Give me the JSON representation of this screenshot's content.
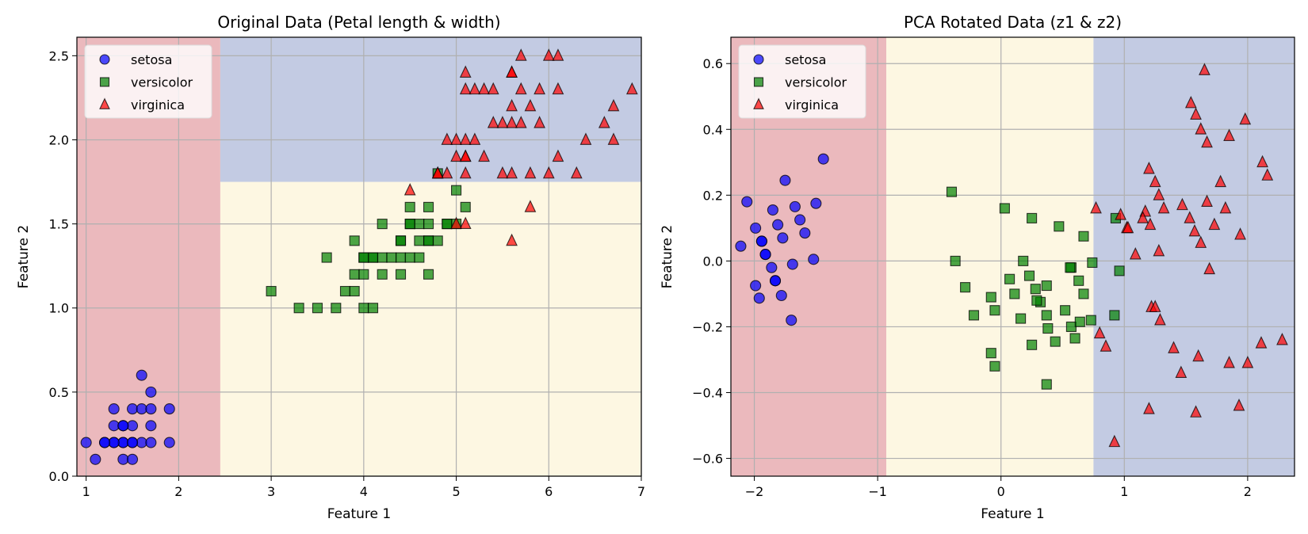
{
  "chart_data": [
    {
      "type": "scatter",
      "title": "Original Data (Petal length & width)",
      "xlabel": "Feature 1",
      "ylabel": "Feature 2",
      "xlim": [
        0.9,
        7.0
      ],
      "ylim": [
        0.0,
        2.61
      ],
      "xticks": [
        1,
        2,
        3,
        4,
        5,
        6,
        7
      ],
      "xtick_labels": [
        "1",
        "2",
        "3",
        "4",
        "5",
        "6",
        "7"
      ],
      "yticks": [
        0.0,
        0.5,
        1.0,
        1.5,
        2.0,
        2.5
      ],
      "ytick_labels": [
        "0.0",
        "0.5",
        "1.0",
        "1.5",
        "2.0",
        "2.5"
      ],
      "grid": true,
      "legend": "top-left",
      "regions": [
        {
          "class": "setosa",
          "color": "#ebb9bd",
          "bounds": {
            "x": [
              0.9,
              2.45
            ],
            "y": [
              0.0,
              2.61
            ]
          }
        },
        {
          "class": "versicolor",
          "color": "#fdf7e2",
          "bounds": {
            "x": [
              2.45,
              7.0
            ],
            "y": [
              0.0,
              1.75
            ]
          }
        },
        {
          "class": "virginica",
          "color": "#c3cbe3",
          "bounds": {
            "x": [
              2.45,
              7.0
            ],
            "y": [
              1.75,
              2.61
            ]
          }
        }
      ],
      "series": [
        {
          "name": "setosa",
          "marker": "circle",
          "color": "#0000ff",
          "points": [
            [
              1.0,
              0.2
            ],
            [
              1.1,
              0.1
            ],
            [
              1.2,
              0.2
            ],
            [
              1.3,
              0.2
            ],
            [
              1.4,
              0.2
            ],
            [
              1.5,
              0.2
            ],
            [
              1.6,
              0.2
            ],
            [
              1.7,
              0.2
            ],
            [
              1.9,
              0.2
            ],
            [
              1.4,
              0.1
            ],
            [
              1.5,
              0.1
            ],
            [
              1.3,
              0.3
            ],
            [
              1.4,
              0.3
            ],
            [
              1.5,
              0.3
            ],
            [
              1.7,
              0.3
            ],
            [
              1.3,
              0.4
            ],
            [
              1.5,
              0.4
            ],
            [
              1.6,
              0.4
            ],
            [
              1.7,
              0.4
            ],
            [
              1.9,
              0.4
            ],
            [
              1.7,
              0.5
            ],
            [
              1.6,
              0.6
            ],
            [
              1.4,
              0.2
            ],
            [
              1.5,
              0.2
            ],
            [
              1.3,
              0.2
            ],
            [
              1.2,
              0.2
            ],
            [
              1.4,
              0.3
            ]
          ]
        },
        {
          "name": "versicolor",
          "marker": "square",
          "color": "#008000",
          "points": [
            [
              3.0,
              1.1
            ],
            [
              3.3,
              1.0
            ],
            [
              3.5,
              1.0
            ],
            [
              3.7,
              1.0
            ],
            [
              4.0,
              1.0
            ],
            [
              4.1,
              1.0
            ],
            [
              3.8,
              1.1
            ],
            [
              3.9,
              1.1
            ],
            [
              3.9,
              1.2
            ],
            [
              4.0,
              1.2
            ],
            [
              4.2,
              1.2
            ],
            [
              4.4,
              1.2
            ],
            [
              4.7,
              1.2
            ],
            [
              3.6,
              1.3
            ],
            [
              4.0,
              1.3
            ],
            [
              4.1,
              1.3
            ],
            [
              4.2,
              1.3
            ],
            [
              4.3,
              1.3
            ],
            [
              4.4,
              1.3
            ],
            [
              4.5,
              1.3
            ],
            [
              4.6,
              1.3
            ],
            [
              3.9,
              1.4
            ],
            [
              4.4,
              1.4
            ],
            [
              4.6,
              1.4
            ],
            [
              4.7,
              1.4
            ],
            [
              4.8,
              1.4
            ],
            [
              4.2,
              1.5
            ],
            [
              4.5,
              1.5
            ],
            [
              4.6,
              1.5
            ],
            [
              4.7,
              1.5
            ],
            [
              4.9,
              1.5
            ],
            [
              5.0,
              1.5
            ],
            [
              4.5,
              1.6
            ],
            [
              4.7,
              1.6
            ],
            [
              5.1,
              1.6
            ],
            [
              5.0,
              1.7
            ],
            [
              4.8,
              1.8
            ],
            [
              4.1,
              1.3
            ],
            [
              4.0,
              1.3
            ],
            [
              4.5,
              1.5
            ],
            [
              4.4,
              1.4
            ],
            [
              4.7,
              1.4
            ],
            [
              4.9,
              1.5
            ]
          ]
        },
        {
          "name": "virginica",
          "marker": "triangle",
          "color": "#ff0000",
          "points": [
            [
              4.5,
              1.7
            ],
            [
              5.0,
              1.5
            ],
            [
              5.1,
              1.5
            ],
            [
              5.6,
              1.4
            ],
            [
              5.8,
              1.6
            ],
            [
              4.8,
              1.8
            ],
            [
              4.9,
              1.8
            ],
            [
              5.1,
              1.8
            ],
            [
              5.5,
              1.8
            ],
            [
              5.6,
              1.8
            ],
            [
              5.8,
              1.8
            ],
            [
              6.0,
              1.8
            ],
            [
              6.3,
              1.8
            ],
            [
              4.8,
              1.8
            ],
            [
              5.0,
              1.9
            ],
            [
              5.1,
              1.9
            ],
            [
              5.3,
              1.9
            ],
            [
              6.1,
              1.9
            ],
            [
              5.1,
              1.9
            ],
            [
              4.9,
              2.0
            ],
            [
              5.0,
              2.0
            ],
            [
              5.1,
              2.0
            ],
            [
              5.2,
              2.0
            ],
            [
              6.4,
              2.0
            ],
            [
              6.7,
              2.0
            ],
            [
              5.6,
              2.1
            ],
            [
              5.4,
              2.1
            ],
            [
              5.5,
              2.1
            ],
            [
              5.7,
              2.1
            ],
            [
              5.9,
              2.1
            ],
            [
              6.6,
              2.1
            ],
            [
              5.6,
              2.2
            ],
            [
              5.8,
              2.2
            ],
            [
              6.7,
              2.2
            ],
            [
              5.1,
              2.3
            ],
            [
              5.2,
              2.3
            ],
            [
              5.3,
              2.3
            ],
            [
              5.4,
              2.3
            ],
            [
              5.7,
              2.3
            ],
            [
              5.9,
              2.3
            ],
            [
              6.1,
              2.3
            ],
            [
              6.9,
              2.3
            ],
            [
              5.1,
              2.4
            ],
            [
              5.6,
              2.4
            ],
            [
              5.6,
              2.4
            ],
            [
              5.7,
              2.5
            ],
            [
              6.0,
              2.5
            ],
            [
              6.1,
              2.5
            ]
          ]
        }
      ]
    },
    {
      "type": "scatter",
      "title": "PCA Rotated Data (z1 & z2)",
      "xlabel": "Feature 1",
      "ylabel": "Feature 2",
      "xlim": [
        -2.19,
        2.38
      ],
      "ylim": [
        -0.654,
        0.68
      ],
      "xticks": [
        -2,
        -1,
        0,
        1,
        2
      ],
      "xtick_labels": [
        "−2",
        "−1",
        "0",
        "1",
        "2"
      ],
      "yticks": [
        -0.6,
        -0.4,
        -0.2,
        0.0,
        0.2,
        0.4,
        0.6
      ],
      "ytick_labels": [
        "−0.6",
        "−0.4",
        "−0.2",
        "0.0",
        "0.2",
        "0.4",
        "0.6"
      ],
      "grid": true,
      "legend": "top-left",
      "regions": [
        {
          "class": "setosa",
          "color": "#ebb9bd",
          "bounds": {
            "x": [
              -2.19,
              -0.93
            ],
            "y": [
              -0.654,
              0.68
            ]
          }
        },
        {
          "class": "versicolor",
          "color": "#fdf7e2",
          "bounds": {
            "x": [
              -0.93,
              0.75
            ],
            "y": [
              -0.654,
              0.68
            ]
          }
        },
        {
          "class": "virginica",
          "color": "#c3cbe3",
          "bounds": {
            "x": [
              0.75,
              2.38
            ],
            "y": [
              -0.654,
              0.68
            ]
          }
        }
      ],
      "series": [
        {
          "name": "setosa",
          "marker": "circle",
          "color": "#0000ff",
          "points": [
            [
              -2.11,
              0.045
            ],
            [
              -2.06,
              0.18
            ],
            [
              -1.99,
              0.1
            ],
            [
              -1.99,
              -0.075
            ],
            [
              -1.96,
              -0.113
            ],
            [
              -1.94,
              0.06
            ],
            [
              -1.91,
              0.02
            ],
            [
              -1.86,
              -0.02
            ],
            [
              -1.83,
              -0.06
            ],
            [
              -1.85,
              0.155
            ],
            [
              -1.81,
              0.11
            ],
            [
              -1.78,
              -0.105
            ],
            [
              -1.77,
              0.07
            ],
            [
              -1.75,
              0.245
            ],
            [
              -1.7,
              -0.18
            ],
            [
              -1.69,
              -0.01
            ],
            [
              -1.67,
              0.165
            ],
            [
              -1.63,
              0.125
            ],
            [
              -1.59,
              0.085
            ],
            [
              -1.52,
              0.005
            ],
            [
              -1.5,
              0.175
            ],
            [
              -1.44,
              0.31
            ],
            [
              -1.94,
              0.06
            ],
            [
              -1.91,
              0.02
            ],
            [
              -1.83,
              -0.06
            ]
          ]
        },
        {
          "name": "versicolor",
          "marker": "square",
          "color": "#008000",
          "points": [
            [
              -0.4,
              0.21
            ],
            [
              0.03,
              0.16
            ],
            [
              0.25,
              0.13
            ],
            [
              0.47,
              0.105
            ],
            [
              0.67,
              0.075
            ],
            [
              -0.37,
              0.0
            ],
            [
              0.18,
              0.0
            ],
            [
              0.57,
              -0.02
            ],
            [
              0.74,
              -0.005
            ],
            [
              -0.29,
              -0.08
            ],
            [
              0.07,
              -0.055
            ],
            [
              0.23,
              -0.045
            ],
            [
              0.28,
              -0.085
            ],
            [
              0.11,
              -0.1
            ],
            [
              0.37,
              -0.075
            ],
            [
              0.63,
              -0.06
            ],
            [
              0.67,
              -0.1
            ],
            [
              -0.08,
              -0.11
            ],
            [
              0.52,
              -0.15
            ],
            [
              0.73,
              -0.18
            ],
            [
              -0.05,
              -0.15
            ],
            [
              0.32,
              -0.125
            ],
            [
              -0.22,
              -0.165
            ],
            [
              0.37,
              -0.165
            ],
            [
              0.16,
              -0.175
            ],
            [
              0.57,
              -0.2
            ],
            [
              0.38,
              -0.205
            ],
            [
              0.64,
              -0.185
            ],
            [
              0.92,
              -0.165
            ],
            [
              0.96,
              -0.03
            ],
            [
              0.93,
              0.13
            ],
            [
              0.6,
              -0.235
            ],
            [
              0.44,
              -0.245
            ],
            [
              0.25,
              -0.255
            ],
            [
              -0.08,
              -0.28
            ],
            [
              -0.05,
              -0.32
            ],
            [
              0.37,
              -0.375
            ],
            [
              0.56,
              -0.02
            ],
            [
              0.29,
              -0.12
            ]
          ]
        },
        {
          "name": "virginica",
          "marker": "triangle",
          "color": "#ff0000",
          "points": [
            [
              1.65,
              0.58
            ],
            [
              1.54,
              0.48
            ],
            [
              1.58,
              0.445
            ],
            [
              1.62,
              0.4
            ],
            [
              1.67,
              0.36
            ],
            [
              1.85,
              0.38
            ],
            [
              1.98,
              0.43
            ],
            [
              1.2,
              0.28
            ],
            [
              1.25,
              0.24
            ],
            [
              1.28,
              0.2
            ],
            [
              1.32,
              0.16
            ],
            [
              1.17,
              0.15
            ],
            [
              1.47,
              0.17
            ],
            [
              1.53,
              0.13
            ],
            [
              1.57,
              0.09
            ],
            [
              1.62,
              0.055
            ],
            [
              1.67,
              0.18
            ],
            [
              1.78,
              0.24
            ],
            [
              1.82,
              0.16
            ],
            [
              1.94,
              0.08
            ],
            [
              2.12,
              0.3
            ],
            [
              2.16,
              0.26
            ],
            [
              1.15,
              0.13
            ],
            [
              1.02,
              0.1
            ],
            [
              0.77,
              0.16
            ],
            [
              0.97,
              0.14
            ],
            [
              1.09,
              0.02
            ],
            [
              1.28,
              0.03
            ],
            [
              1.73,
              0.11
            ],
            [
              1.69,
              -0.025
            ],
            [
              1.21,
              0.11
            ],
            [
              0.8,
              -0.22
            ],
            [
              0.85,
              -0.26
            ],
            [
              1.22,
              -0.14
            ],
            [
              1.29,
              -0.18
            ],
            [
              1.4,
              -0.265
            ],
            [
              1.6,
              -0.29
            ],
            [
              1.85,
              -0.31
            ],
            [
              1.46,
              -0.34
            ],
            [
              2.0,
              -0.31
            ],
            [
              2.11,
              -0.25
            ],
            [
              2.28,
              -0.24
            ],
            [
              1.2,
              -0.45
            ],
            [
              1.58,
              -0.46
            ],
            [
              1.93,
              -0.44
            ],
            [
              0.92,
              -0.55
            ],
            [
              1.25,
              -0.14
            ],
            [
              1.03,
              0.1
            ]
          ]
        }
      ]
    }
  ],
  "legend_entries": [
    "setosa",
    "versicolor",
    "virginica"
  ]
}
